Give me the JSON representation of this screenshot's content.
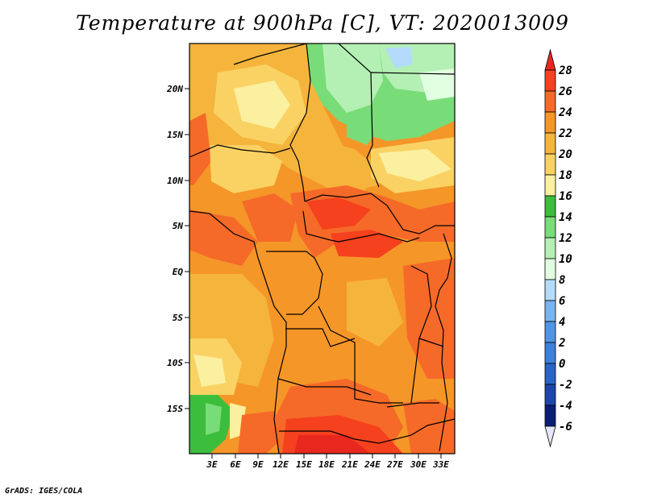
{
  "title": "Temperature at 900hPa [C], VT: 2020013009",
  "credit": "GrADS: IGES/COLA",
  "map": {
    "lat_labels": [
      "20N",
      "15N",
      "10N",
      "5N",
      "EQ",
      "5S",
      "10S",
      "15S"
    ],
    "lon_labels": [
      "3E",
      "6E",
      "9E",
      "12E",
      "15E",
      "18E",
      "21E",
      "24E",
      "27E",
      "30E",
      "33E"
    ]
  },
  "colorbar": {
    "levels": [
      "28",
      "26",
      "24",
      "22",
      "20",
      "18",
      "16",
      "14",
      "12",
      "10",
      "8",
      "6",
      "4",
      "2",
      "0",
      "-2",
      "-4",
      "-6"
    ],
    "colors": {
      "above_28": "#e8281e",
      "26_28": "#f5411e",
      "24_26": "#f56a28",
      "22_24": "#f59628",
      "20_22": "#f5b43c",
      "18_20": "#fad264",
      "16_18": "#faf0a0",
      "14_16": "#3cbe3c",
      "12_14": "#78dc78",
      "10_12": "#b4f0b4",
      "8_10": "#e1ffe1",
      "6_8": "#b4dcfa",
      "4_6": "#78b4f0",
      "2_4": "#5096e6",
      "0_2": "#3c82dc",
      "-2_0": "#2a64c8",
      "-4_-2": "#1e46aa",
      "-6_-4": "#0a1e78",
      "below_-6": "#e6e6fa"
    }
  }
}
